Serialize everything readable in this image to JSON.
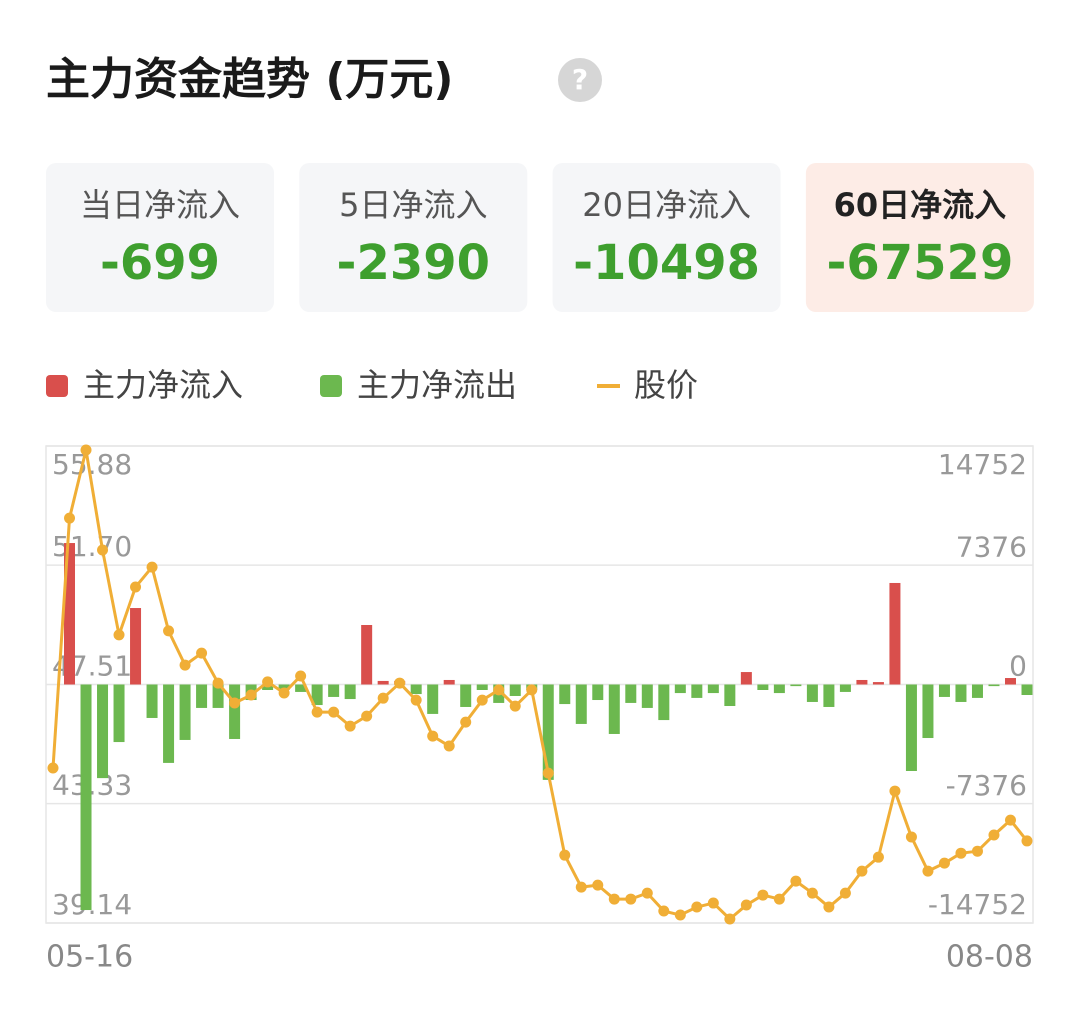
{
  "header": {
    "title": "主力资金趋势 (万元)",
    "help_icon": "?"
  },
  "summary": {
    "selected": 3,
    "cards": [
      {
        "label": "当日净流入",
        "value": -699
      },
      {
        "label": "5日净流入",
        "value": -2390
      },
      {
        "label": "20日净流入",
        "value": -10498
      },
      {
        "label": "60日净流入",
        "value": -67529
      }
    ]
  },
  "chart_data": {
    "type": "bar-line",
    "categories": [
      "05-16",
      null,
      null,
      null,
      null,
      null,
      null,
      null,
      null,
      null,
      null,
      null,
      null,
      null,
      null,
      null,
      null,
      null,
      null,
      null,
      null,
      null,
      null,
      null,
      null,
      null,
      null,
      null,
      null,
      null,
      null,
      null,
      null,
      null,
      null,
      null,
      null,
      null,
      null,
      null,
      null,
      null,
      null,
      null,
      null,
      null,
      null,
      null,
      null,
      null,
      null,
      null,
      null,
      null,
      null,
      null,
      null,
      null,
      null,
      "08-08"
    ],
    "series": [
      {
        "name": "主力净流入",
        "color": "#d94f4c",
        "axis": "y2",
        "values": [
          null,
          8750,
          null,
          null,
          null,
          4730,
          null,
          null,
          null,
          null,
          null,
          null,
          null,
          null,
          null,
          null,
          null,
          null,
          null,
          3680,
          220,
          220,
          null,
          null,
          280,
          null,
          null,
          null,
          null,
          null,
          null,
          null,
          null,
          null,
          null,
          null,
          null,
          null,
          null,
          null,
          null,
          null,
          770,
          null,
          null,
          null,
          null,
          null,
          null,
          280,
          150,
          6280,
          null,
          null,
          null,
          null,
          null,
          null,
          400,
          null
        ]
      },
      {
        "name": "主力净流出",
        "color": "#6cb84f",
        "axis": "y2",
        "values": [
          null,
          null,
          -13950,
          -5790,
          -3560,
          null,
          -2070,
          -4850,
          -3430,
          -1450,
          -1450,
          -3370,
          -960,
          -340,
          -340,
          -460,
          -1270,
          -770,
          -900,
          null,
          null,
          null,
          -590,
          -1820,
          null,
          -1390,
          -340,
          -1140,
          -710,
          -340,
          -5900,
          -1210,
          -2440,
          -960,
          -3060,
          -1140,
          -1450,
          -2200,
          -530,
          -830,
          -530,
          -1330,
          null,
          -340,
          -530,
          -100,
          -1080,
          -1390,
          -460,
          null,
          null,
          null,
          -5350,
          -3310,
          -770,
          -1080,
          -830,
          -100,
          null,
          -650
        ]
      },
      {
        "name": "股价",
        "color": "#f0ae36",
        "type": "line",
        "values": [
          44.58,
          53.35,
          55.74,
          52.23,
          49.25,
          50.93,
          51.63,
          49.39,
          48.19,
          48.61,
          47.56,
          46.86,
          47.14,
          47.6,
          47.21,
          47.81,
          46.54,
          46.54,
          46.05,
          46.4,
          47.03,
          47.56,
          46.96,
          45.7,
          45.35,
          46.19,
          46.96,
          47.32,
          46.75,
          47.32,
          44.4,
          41.52,
          40.4,
          40.47,
          39.98,
          39.98,
          40.19,
          39.56,
          39.42,
          39.7,
          39.84,
          39.28,
          39.77,
          40.12,
          39.98,
          40.61,
          40.19,
          39.7,
          40.19,
          40.96,
          41.45,
          43.77,
          42.16,
          40.96,
          41.24,
          41.59,
          41.66,
          42.23,
          42.75,
          42.02
        ]
      }
    ],
    "ylim": [
      39.14,
      55.88
    ],
    "yticks": [
      39.14,
      43.33,
      47.51,
      {
        "value": 51.7,
        "label": "51.70"
      },
      55.88
    ],
    "y2lim": [
      -14752,
      14752
    ],
    "y2ticks": [
      -14752,
      -7376,
      0,
      7376,
      14752
    ],
    "grid": true
  }
}
